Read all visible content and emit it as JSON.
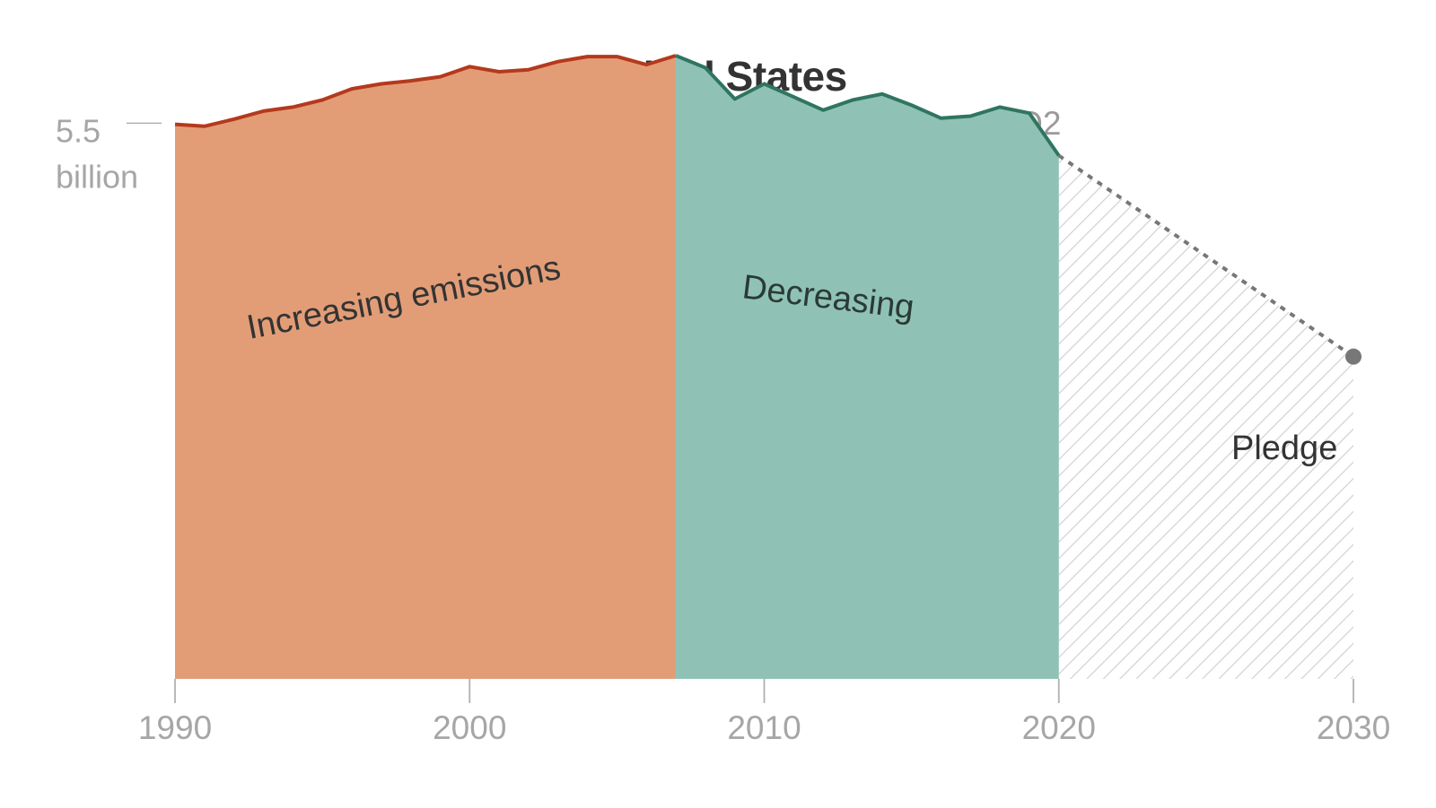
{
  "chart_data": {
    "type": "area",
    "title": "United States",
    "subtitle": "Greenhouse gas emissions in metric tons CO2",
    "xlim": [
      1990,
      2030
    ],
    "ylim": [
      0,
      6.72
    ],
    "x_ticks": [
      1990,
      2000,
      2010,
      2020,
      2030
    ],
    "y_tick": {
      "value": 5.5,
      "label_line1": "5.5",
      "label_line2": "billion"
    },
    "series": [
      {
        "id": "increasing",
        "color": "#b5391c",
        "fill": "#e29d77",
        "x": [
          1990,
          1991,
          1992,
          1993,
          1994,
          1995,
          1996,
          1997,
          1998,
          1999,
          2000,
          2001,
          2002,
          2003,
          2004,
          2005,
          2006,
          2007
        ],
        "y": [
          5.49,
          5.47,
          5.54,
          5.62,
          5.66,
          5.73,
          5.84,
          5.89,
          5.92,
          5.96,
          6.06,
          6.01,
          6.03,
          6.11,
          6.16,
          6.16,
          6.08,
          6.17
        ]
      },
      {
        "id": "decreasing",
        "color": "#2f7560",
        "fill": "#8fc2b5",
        "x": [
          2007,
          2008,
          2009,
          2010,
          2011,
          2012,
          2013,
          2014,
          2015,
          2016,
          2017,
          2018,
          2019,
          2020
        ],
        "y": [
          6.17,
          6.05,
          5.74,
          5.89,
          5.76,
          5.63,
          5.73,
          5.79,
          5.68,
          5.55,
          5.57,
          5.66,
          5.6,
          5.18
        ]
      },
      {
        "id": "pledge",
        "color": "#777777",
        "style": "dashed",
        "hatch": "#d2d2d2",
        "x": [
          2020,
          2030
        ],
        "y": [
          5.18,
          3.19
        ]
      }
    ],
    "annotations": {
      "increasing": "Increasing emissions",
      "decreasing": "Decreasing",
      "pledge": "Pledge"
    },
    "grid": false
  }
}
